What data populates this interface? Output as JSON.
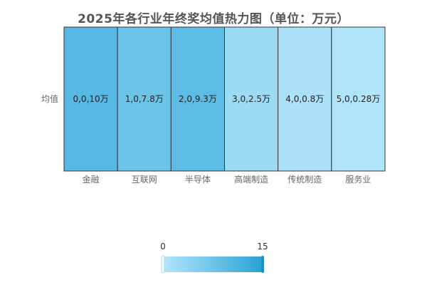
{
  "chart_data": {
    "type": "heatmap",
    "title": "2025年各行业年终奖均值热力图（单位：万元）",
    "x_categories": [
      "金融",
      "互联网",
      "半导体",
      "高端制造",
      "传统制造",
      "服务业"
    ],
    "y_categories": [
      "均值"
    ],
    "cells": [
      {
        "x": 0,
        "y": 0,
        "value": 10,
        "label": "0,0,10万"
      },
      {
        "x": 1,
        "y": 0,
        "value": 7.8,
        "label": "1,0,7.8万"
      },
      {
        "x": 2,
        "y": 0,
        "value": 9.3,
        "label": "2,0,9.3万"
      },
      {
        "x": 3,
        "y": 0,
        "value": 2.5,
        "label": "3,0,2.5万"
      },
      {
        "x": 4,
        "y": 0,
        "value": 0.8,
        "label": "4,0,0.8万"
      },
      {
        "x": 5,
        "y": 0,
        "value": 0.28,
        "label": "5,0,0.28万"
      }
    ],
    "visual_map": {
      "min": 0,
      "max": 15,
      "min_label": "0",
      "max_label": "15",
      "color_low": "#b3e5fc",
      "color_high": "#29a3d6"
    }
  }
}
